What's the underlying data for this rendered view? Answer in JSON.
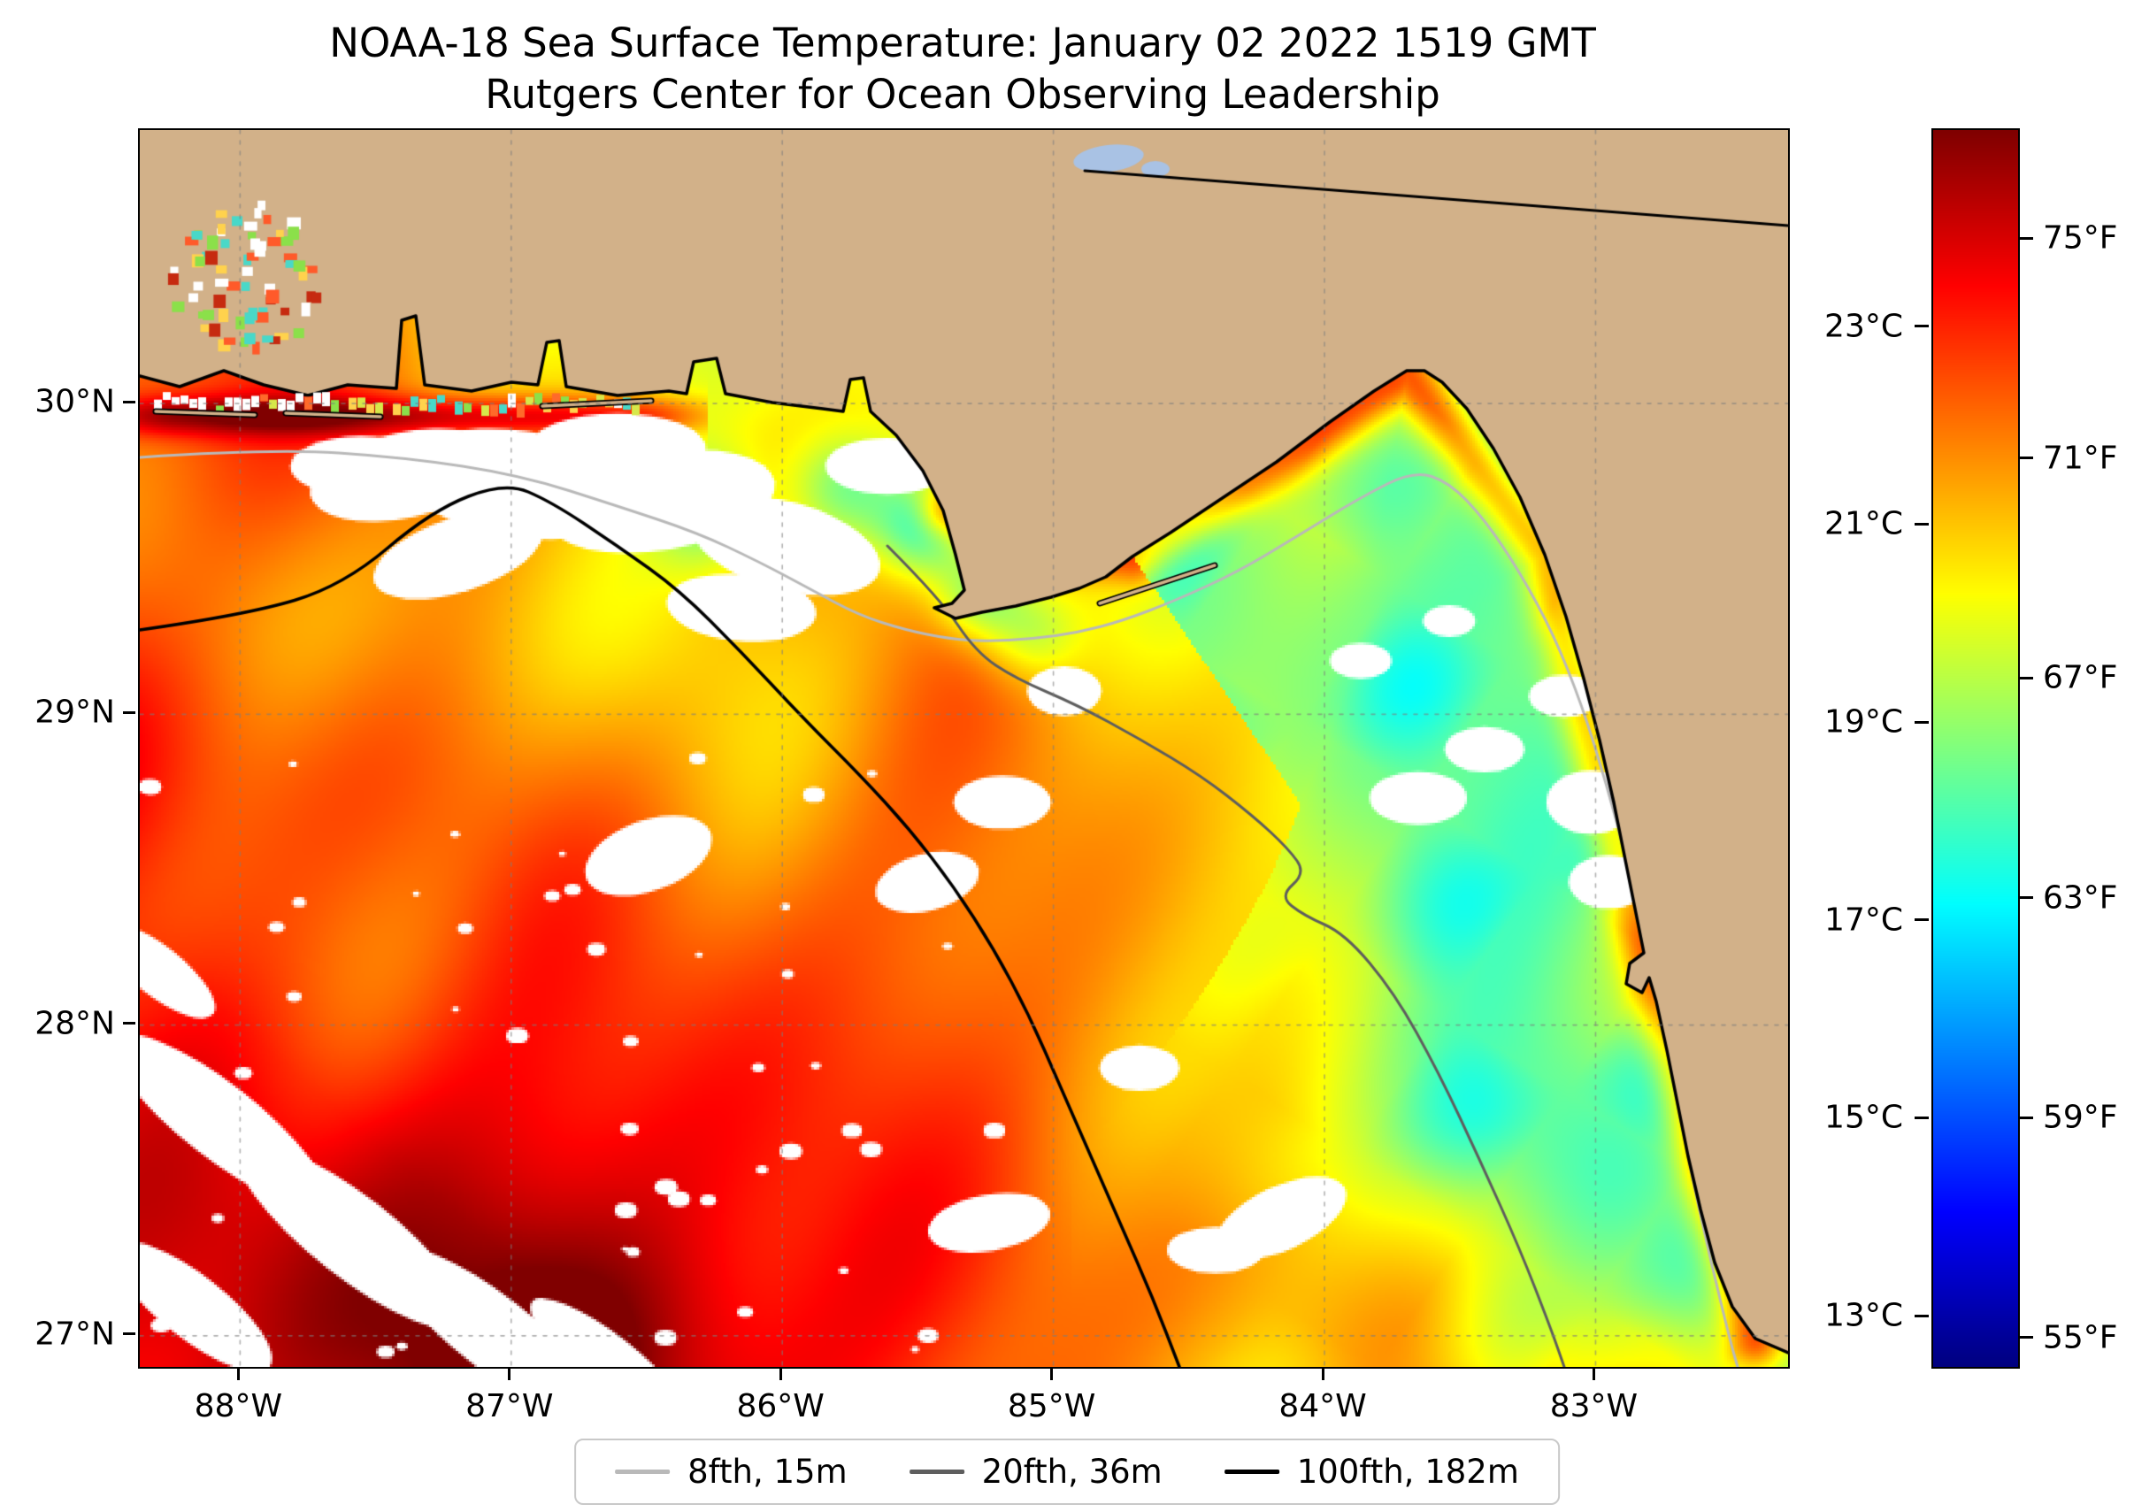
{
  "title": {
    "line1": "NOAA-18 Sea Surface Temperature: January 02 2022 1519 GMT",
    "line2": "Rutgers Center for Ocean Observing Leadership"
  },
  "axes": {
    "x_ticks": [
      {
        "label": "88°W",
        "lon": -88
      },
      {
        "label": "87°W",
        "lon": -87
      },
      {
        "label": "86°W",
        "lon": -86
      },
      {
        "label": "85°W",
        "lon": -85
      },
      {
        "label": "84°W",
        "lon": -84
      },
      {
        "label": "83°W",
        "lon": -83
      }
    ],
    "y_ticks": [
      {
        "label": "30°N",
        "lat": 30
      },
      {
        "label": "29°N",
        "lat": 29
      },
      {
        "label": "28°N",
        "lat": 28
      },
      {
        "label": "27°N",
        "lat": 27
      }
    ],
    "lon_min": -88.37,
    "lon_max": -82.29,
    "lat_min": 26.9,
    "lat_max": 30.88
  },
  "colorbar": {
    "min_c": 12.5,
    "max_c": 25.0,
    "celsius_ticks": [
      {
        "label": "23°C",
        "value_c": 23
      },
      {
        "label": "21°C",
        "value_c": 21
      },
      {
        "label": "19°C",
        "value_c": 19
      },
      {
        "label": "17°C",
        "value_c": 17
      },
      {
        "label": "15°C",
        "value_c": 15
      },
      {
        "label": "13°C",
        "value_c": 13
      }
    ],
    "fahrenheit_ticks": [
      {
        "label": "75°F",
        "value_c": 23.889
      },
      {
        "label": "71°F",
        "value_c": 21.667
      },
      {
        "label": "67°F",
        "value_c": 19.444
      },
      {
        "label": "63°F",
        "value_c": 17.222
      },
      {
        "label": "59°F",
        "value_c": 15.0
      },
      {
        "label": "55°F",
        "value_c": 12.778
      }
    ]
  },
  "legend": {
    "items": [
      {
        "label": "8fth, 15m",
        "color": "#b9b9b9"
      },
      {
        "label": "20fth, 36m",
        "color": "#5e5e5e"
      },
      {
        "label": "100fth, 182m",
        "color": "#000000"
      }
    ]
  },
  "map": {
    "land_color": "#d2b189",
    "lake_color": "#a9c2e4",
    "cloud_color": "#ffffff"
  },
  "chart_data": {
    "type": "heatmap",
    "title": "NOAA-18 Sea Surface Temperature: January 02 2022 1519 GMT",
    "subtitle": "Rutgers Center for Ocean Observing Leadership",
    "x_range_deg_lon": [
      -88.37,
      -82.29
    ],
    "y_range_deg_lat": [
      26.9,
      30.88
    ],
    "colorbar_range_c": [
      12.5,
      25.0
    ],
    "colorbar_ticks_c": [
      13,
      15,
      17,
      19,
      21,
      23
    ],
    "colorbar_ticks_f": [
      55,
      59,
      63,
      67,
      71,
      75
    ],
    "legend_entries": [
      "8fth, 15m",
      "20fth, 36m",
      "100fth, 182m"
    ],
    "grid": true,
    "colormap": "jet"
  }
}
